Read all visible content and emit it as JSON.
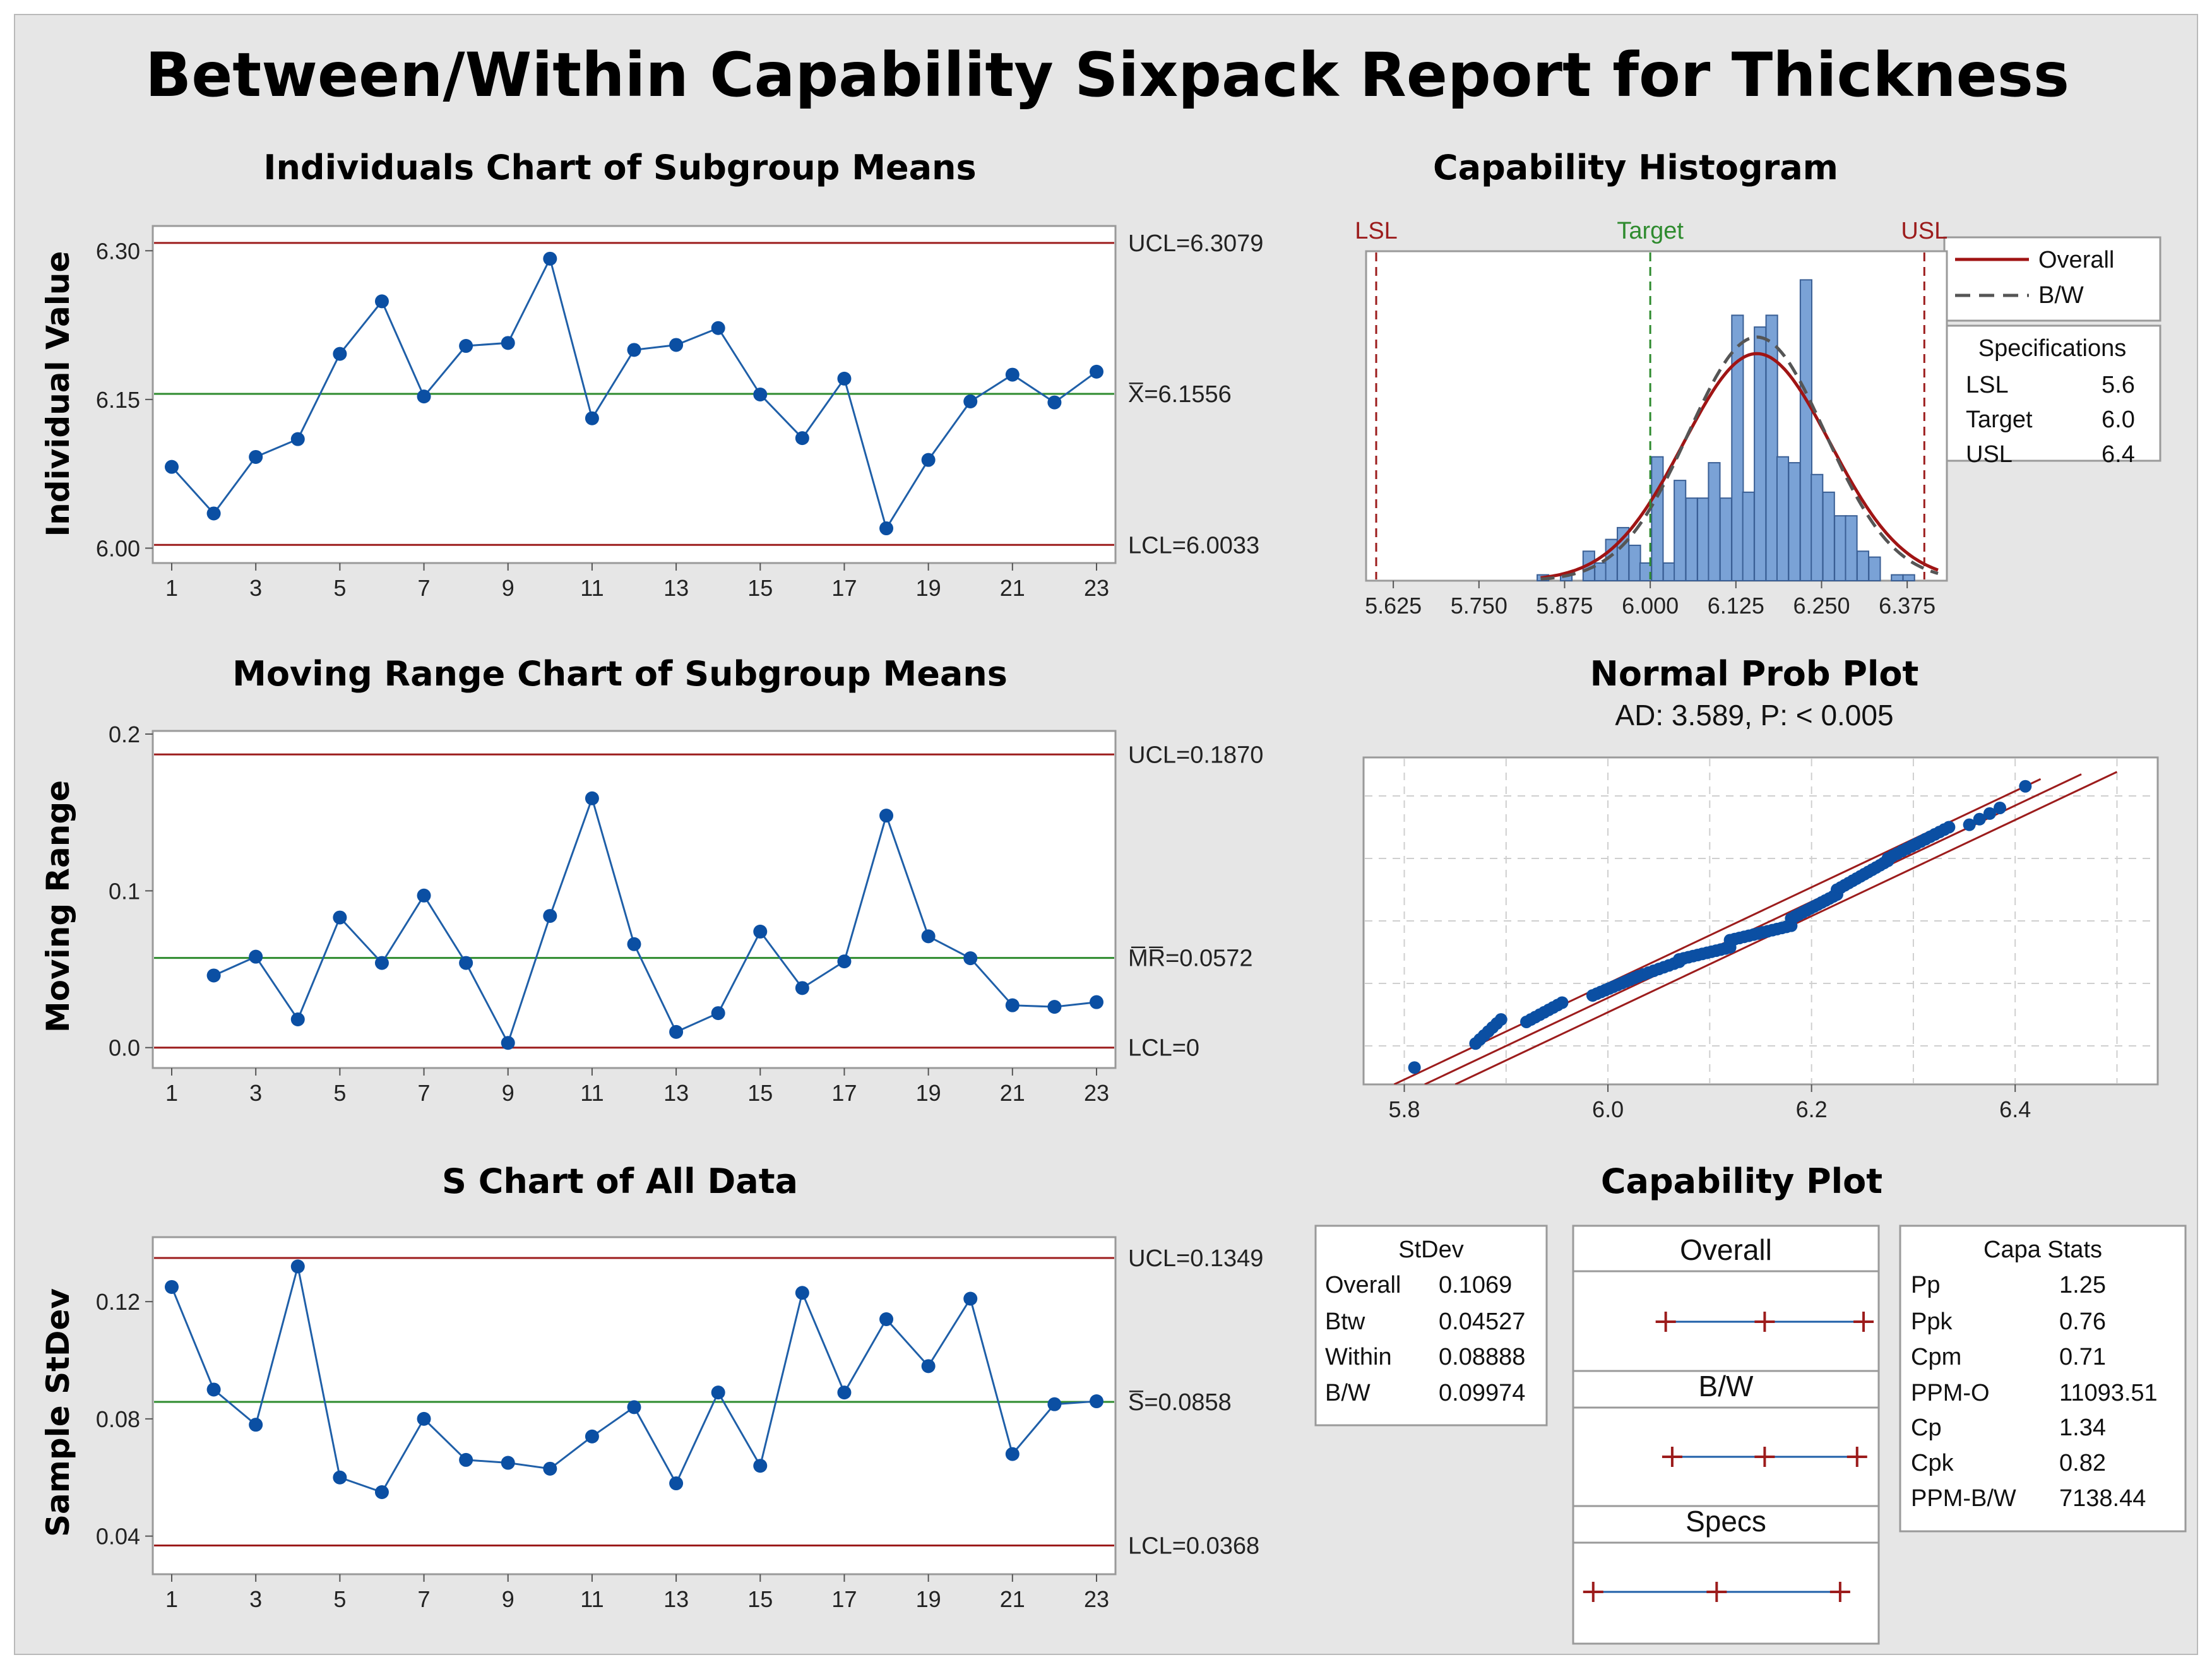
{
  "title": "Between/Within Capability Sixpack Report for Thickness",
  "colors": {
    "limit": "#9c1c1c",
    "center": "#2e8b2e",
    "series": "#1f5fa8",
    "point": "#0b4fa3",
    "bar": "#7aa2d6",
    "bar_edge": "#3a5f95",
    "overall": "#a01414",
    "bw": "#555555",
    "target": "#2e8b2e"
  },
  "chart_data": [
    {
      "id": "individuals",
      "type": "line",
      "title": "Individuals Chart of Subgroup Means",
      "ylabel": "Individual Value",
      "x": [
        1,
        2,
        3,
        4,
        5,
        6,
        7,
        8,
        9,
        10,
        11,
        12,
        13,
        14,
        15,
        16,
        17,
        18,
        19,
        20,
        21,
        22,
        23
      ],
      "values": [
        6.082,
        6.035,
        6.092,
        6.11,
        6.196,
        6.249,
        6.153,
        6.204,
        6.207,
        6.292,
        6.131,
        6.2,
        6.205,
        6.222,
        6.155,
        6.111,
        6.171,
        6.02,
        6.089,
        6.148,
        6.175,
        6.147,
        6.178
      ],
      "xlim": [
        1,
        23
      ],
      "ylim": [
        5.985,
        6.325
      ],
      "xticks": [
        1,
        3,
        5,
        7,
        9,
        11,
        13,
        15,
        17,
        19,
        21,
        23
      ],
      "yticks": [
        6.0,
        6.15,
        6.3
      ],
      "ytick_labels": [
        "6.00",
        "6.15",
        "6.30"
      ],
      "limits": [
        {
          "value": 6.3079,
          "label": "UCL=6.3079",
          "kind": "limit"
        },
        {
          "value": 6.1556,
          "label": "X̅=6.1556",
          "kind": "center"
        },
        {
          "value": 6.0033,
          "label": "LCL=6.0033",
          "kind": "limit"
        }
      ]
    },
    {
      "id": "moving-range",
      "type": "line",
      "title": "Moving Range Chart of Subgroup Means",
      "ylabel": "Moving Range",
      "x": [
        2,
        3,
        4,
        5,
        6,
        7,
        8,
        9,
        10,
        11,
        12,
        13,
        14,
        15,
        16,
        17,
        18,
        19,
        20,
        21,
        22,
        23
      ],
      "values": [
        0.046,
        0.058,
        0.018,
        0.083,
        0.054,
        0.097,
        0.054,
        0.003,
        0.084,
        0.159,
        0.066,
        0.01,
        0.022,
        0.074,
        0.038,
        0.055,
        0.148,
        0.071,
        0.057,
        0.027,
        0.026,
        0.029
      ],
      "xlim": [
        1,
        23
      ],
      "ylim": [
        -0.013,
        0.202
      ],
      "xticks": [
        1,
        3,
        5,
        7,
        9,
        11,
        13,
        15,
        17,
        19,
        21,
        23
      ],
      "yticks": [
        0.0,
        0.1,
        0.2
      ],
      "ytick_labels": [
        "0.0",
        "0.1",
        "0.2"
      ],
      "limits": [
        {
          "value": 0.187,
          "label": "UCL=0.1870",
          "kind": "limit"
        },
        {
          "value": 0.0572,
          "label": "M̅R̅=0.0572",
          "kind": "center"
        },
        {
          "value": 0.0,
          "label": "LCL=0",
          "kind": "limit"
        }
      ]
    },
    {
      "id": "s-chart",
      "type": "line",
      "title": "S Chart of All Data",
      "ylabel": "Sample StDev",
      "x": [
        1,
        2,
        3,
        4,
        5,
        6,
        7,
        8,
        9,
        10,
        11,
        12,
        13,
        14,
        15,
        16,
        17,
        18,
        19,
        20,
        21,
        22,
        23
      ],
      "values": [
        0.125,
        0.09,
        0.078,
        0.132,
        0.06,
        0.055,
        0.08,
        0.066,
        0.065,
        0.063,
        0.074,
        0.084,
        0.058,
        0.089,
        0.064,
        0.123,
        0.089,
        0.114,
        0.098,
        0.121,
        0.068,
        0.085,
        0.086
      ],
      "xlim": [
        1,
        23
      ],
      "ylim": [
        0.027,
        0.142
      ],
      "xticks": [
        1,
        3,
        5,
        7,
        9,
        11,
        13,
        15,
        17,
        19,
        21,
        23
      ],
      "yticks": [
        0.04,
        0.08,
        0.12
      ],
      "ytick_labels": [
        "0.04",
        "0.08",
        "0.12"
      ],
      "limits": [
        {
          "value": 0.1349,
          "label": "UCL=0.1349",
          "kind": "limit"
        },
        {
          "value": 0.0858,
          "label": "S̅=0.0858",
          "kind": "center"
        },
        {
          "value": 0.0368,
          "label": "LCL=0.0368",
          "kind": "limit"
        }
      ]
    },
    {
      "id": "histogram",
      "type": "histogram",
      "title": "Capability Histogram",
      "bin_width": 0.0167,
      "bin_starts": [
        5.835,
        5.852,
        5.869,
        5.885,
        5.902,
        5.919,
        5.935,
        5.952,
        5.969,
        5.985,
        6.002,
        6.019,
        6.035,
        6.052,
        6.069,
        6.085,
        6.102,
        6.119,
        6.135,
        6.152,
        6.169,
        6.185,
        6.202,
        6.219,
        6.235,
        6.252,
        6.269,
        6.285,
        6.302,
        6.319,
        6.335,
        6.352,
        6.369
      ],
      "values": [
        1,
        0,
        1,
        0,
        5,
        3,
        7,
        9,
        6,
        3,
        21,
        3,
        17,
        14,
        14,
        20,
        14,
        45,
        15,
        43,
        45,
        21,
        20,
        51,
        18,
        15,
        11,
        11,
        5,
        4,
        0,
        1,
        1
      ],
      "xlim": [
        5.6,
        6.42
      ],
      "ylim": [
        0,
        55
      ],
      "xticks": [
        5.625,
        5.75,
        5.875,
        6.0,
        6.125,
        6.25,
        6.375
      ],
      "xtick_labels": [
        "5.625",
        "5.750",
        "5.875",
        "6.000",
        "6.125",
        "6.250",
        "6.375"
      ],
      "spec_lines": [
        {
          "value": 5.6,
          "label": "LSL"
        },
        {
          "value": 6.0,
          "label": "Target"
        },
        {
          "value": 6.4,
          "label": "USL"
        }
      ],
      "curves": [
        {
          "name": "Overall",
          "mean": 6.1556,
          "sd": 0.1069,
          "peak": 38.5,
          "style": "solid"
        },
        {
          "name": "B/W",
          "mean": 6.1556,
          "sd": 0.09974,
          "peak": 41.3,
          "style": "dashed"
        }
      ],
      "legend": [
        "Overall",
        "B/W"
      ],
      "specifications": {
        "title": "Specifications",
        "rows": [
          [
            "LSL",
            "5.6"
          ],
          [
            "Target",
            "6.0"
          ],
          [
            "USL",
            "6.4"
          ]
        ]
      }
    },
    {
      "id": "normal-prob",
      "type": "scatter",
      "title": "Normal Prob Plot",
      "subtitle": "AD: 3.589, P: < 0.005",
      "xlim": [
        5.76,
        6.54
      ],
      "ylim": [
        -3.4,
        3.4
      ],
      "xticks": [
        5.8,
        6.0,
        6.2,
        6.4
      ],
      "xtick_labels": [
        "5.8",
        "6.0",
        "6.2",
        "6.4"
      ],
      "segments": [
        {
          "x0": 5.81,
          "x1": 5.87,
          "z0": -3.05,
          "z1": -2.55,
          "n": 1
        },
        {
          "x0": 5.87,
          "x1": 5.895,
          "z0": -2.55,
          "z1": -2.05,
          "n": 7
        },
        {
          "x0": 5.92,
          "x1": 5.955,
          "z0": -2.1,
          "z1": -1.7,
          "n": 9
        },
        {
          "x0": 5.985,
          "x1": 6.03,
          "z0": -1.55,
          "z1": -1.15,
          "n": 12
        },
        {
          "x0": 6.03,
          "x1": 6.07,
          "z0": -1.15,
          "z1": -0.85,
          "n": 9
        },
        {
          "x0": 6.07,
          "x1": 6.12,
          "z0": -0.8,
          "z1": -0.55,
          "n": 12
        },
        {
          "x0": 6.12,
          "x1": 6.18,
          "z0": -0.4,
          "z1": -0.1,
          "n": 14
        },
        {
          "x0": 6.18,
          "x1": 6.225,
          "z0": 0.05,
          "z1": 0.55,
          "n": 13
        },
        {
          "x0": 6.225,
          "x1": 6.275,
          "z0": 0.65,
          "z1": 1.25,
          "n": 14
        },
        {
          "x0": 6.275,
          "x1": 6.335,
          "z0": 1.3,
          "z1": 1.95,
          "n": 14
        },
        {
          "x0": 6.355,
          "x1": 6.385,
          "z0": 2.0,
          "z1": 2.35,
          "n": 4
        },
        {
          "x0": 6.41,
          "x1": 6.41,
          "z0": 2.8,
          "z1": 2.8,
          "n": 1
        }
      ],
      "fit_lines": [
        {
          "x0": 5.79,
          "z0": -3.4,
          "x1": 6.425,
          "z1": 2.95
        },
        {
          "x0": 5.82,
          "z0": -3.4,
          "x1": 6.465,
          "z1": 3.05
        },
        {
          "x0": 5.85,
          "z0": -3.4,
          "x1": 6.5,
          "z1": 3.1
        }
      ]
    }
  ],
  "capability_plot": {
    "title": "Capability Plot",
    "stdev": {
      "title": "StDev",
      "rows": [
        [
          "Overall",
          "0.1069"
        ],
        [
          "Btw",
          "0.04527"
        ],
        [
          "Within",
          "0.08888"
        ],
        [
          "B/W",
          "0.09974"
        ]
      ]
    },
    "intervals": [
      {
        "label": "Overall",
        "low": 5.835,
        "mid": 6.1556,
        "high": 6.476
      },
      {
        "label": "B/W",
        "low": 5.856,
        "mid": 6.1556,
        "high": 6.455
      },
      {
        "label": "Specs",
        "low": 5.6,
        "mid": 6.0,
        "high": 6.4
      }
    ],
    "interval_xlim": [
      5.58,
      6.48
    ],
    "capa_stats": {
      "title": "Capa Stats",
      "rows": [
        [
          "Pp",
          "1.25"
        ],
        [
          "Ppk",
          "0.76"
        ],
        [
          "Cpm",
          "0.71"
        ],
        [
          "PPM-O",
          "11093.51"
        ],
        [
          "Cp",
          "1.34"
        ],
        [
          "Cpk",
          "0.82"
        ],
        [
          "PPM-B/W",
          "7138.44"
        ]
      ]
    }
  }
}
